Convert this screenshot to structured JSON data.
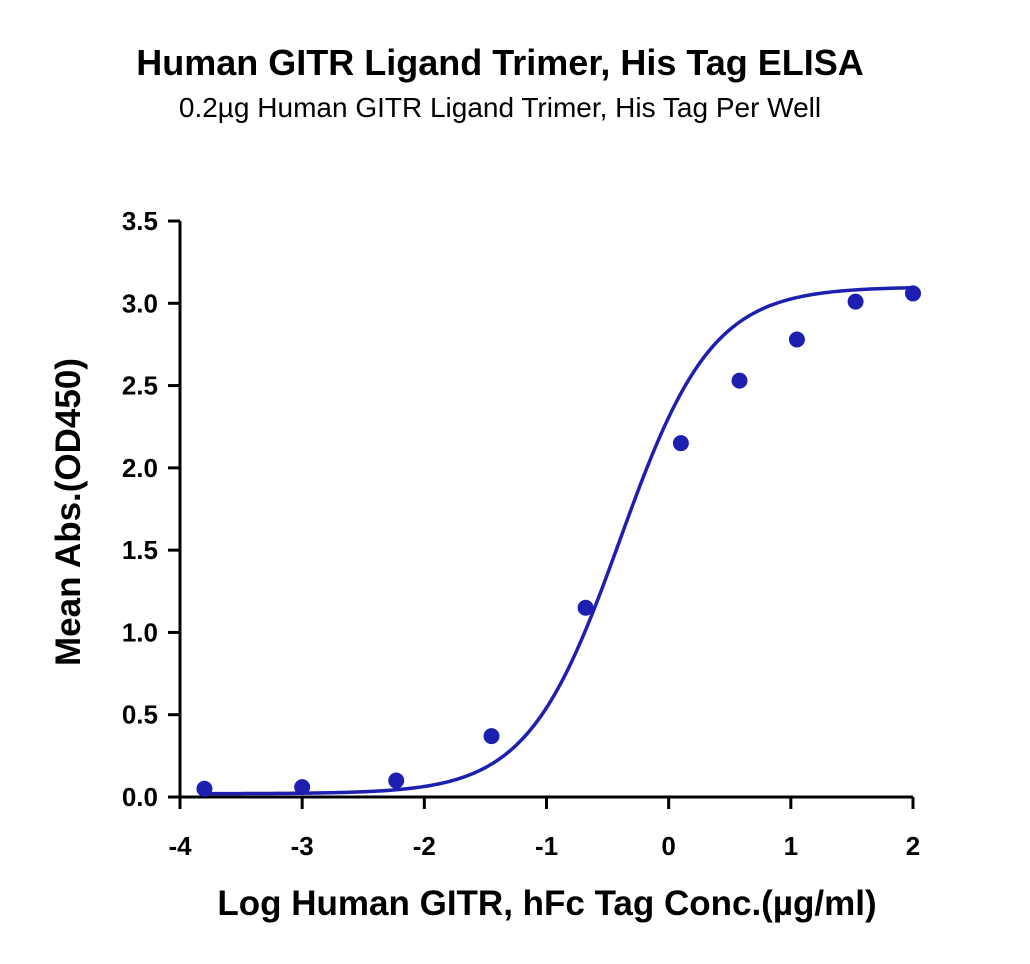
{
  "chart_data": {
    "type": "scatter",
    "title": "Human GITR Ligand Trimer, His Tag ELISA",
    "subtitle": "0.2µg Human GITR Ligand Trimer, His Tag Per Well",
    "xlabel": "Log Human GITR, hFc Tag Conc.(µg/ml)",
    "ylabel": "Mean Abs.(OD450)",
    "xlim": [
      -4,
      2
    ],
    "ylim": [
      0,
      3.5
    ],
    "x_ticks": [
      "-4",
      "-3",
      "-2",
      "-1",
      "0",
      "1",
      "2"
    ],
    "y_ticks": [
      "0.0",
      "0.5",
      "1.0",
      "1.5",
      "2.0",
      "2.5",
      "3.0",
      "3.5"
    ],
    "grid": false,
    "colors": {
      "series": "#1c1fb0",
      "axis": "#000000"
    },
    "points": {
      "x": [
        -3.8,
        -3.0,
        -2.23,
        -1.45,
        -0.68,
        0.1,
        0.58,
        1.05,
        1.53,
        2.0
      ],
      "y": [
        0.05,
        0.06,
        0.1,
        0.37,
        1.15,
        2.15,
        2.53,
        2.78,
        3.01,
        3.06
      ]
    },
    "fit_curve": {
      "model": "4PL",
      "bottom": 0.02,
      "top": 3.1,
      "logEC50": -0.4,
      "hill": 1.15
    }
  }
}
